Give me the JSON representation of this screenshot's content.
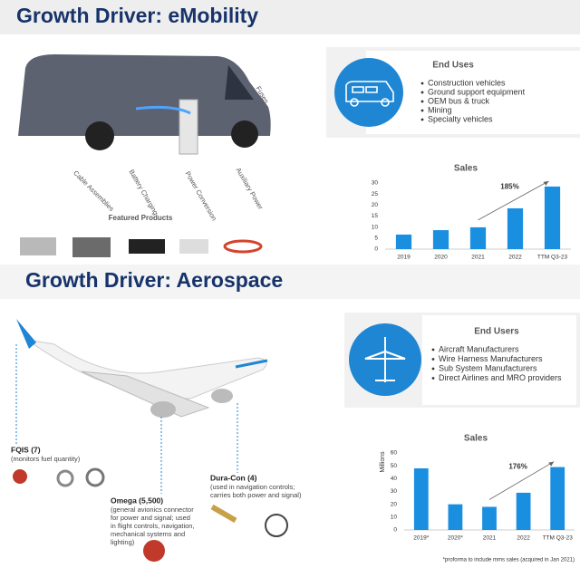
{
  "slides": [
    {
      "title": "Growth Driver: eMobility",
      "list_title": "End Uses",
      "list": [
        "Construction vehicles",
        "Ground support equipment",
        "OEM bus & truck",
        "Mining",
        "Specialty vehicles"
      ],
      "callouts": [
        "Fuses",
        "Cable Assemblies",
        "Battery Charging",
        "Power Conversion",
        "Auxiliary Power"
      ],
      "products_title": "Featured Products"
    },
    {
      "title": "Growth Driver: Aerospace",
      "list_title": "End Users",
      "list": [
        "Aircraft Manufacturers",
        "Wire Harness Manufacturers",
        "Sub System Manufacturers",
        "Direct Airlines and MRO providers"
      ],
      "products": [
        {
          "name": "FQIS (7)",
          "lines": [
            "(monitors fuel quantity)"
          ]
        },
        {
          "name": "Omega (5,500)",
          "lines": [
            "(general avionics connector",
            "for power and signal; used",
            "in flight controls, navigation,",
            "mechanical systems and",
            "lighting)"
          ]
        },
        {
          "name": "Dura-Con (4)",
          "lines": [
            "(used in navigation controls;",
            "carries both power and signal)"
          ]
        }
      ]
    }
  ],
  "chart_data": [
    {
      "type": "bar",
      "title": "Sales",
      "categories": [
        "2019",
        "2020",
        "2021",
        "2022",
        "TTM Q3-23"
      ],
      "values": [
        6.6,
        8.6,
        9.9,
        18.5,
        28.4
      ],
      "color": "#1a8fe0",
      "ylim": [
        0,
        30
      ],
      "yticks": [
        0,
        5,
        10,
        15,
        20,
        25,
        30
      ],
      "annotation": "185%"
    },
    {
      "type": "bar",
      "title": "Sales",
      "ylabel": "Millions",
      "categories": [
        "2019*",
        "2020*",
        "2021",
        "2022",
        "TTM Q3-23"
      ],
      "values": [
        48,
        20,
        18,
        29,
        49
      ],
      "color": "#1a8fe0",
      "ylim": [
        0,
        60
      ],
      "yticks": [
        0,
        10,
        20,
        30,
        40,
        50,
        60
      ],
      "annotation": "176%",
      "footnote": "*proforma to include mms sales (acquired in Jan 2021)"
    }
  ]
}
